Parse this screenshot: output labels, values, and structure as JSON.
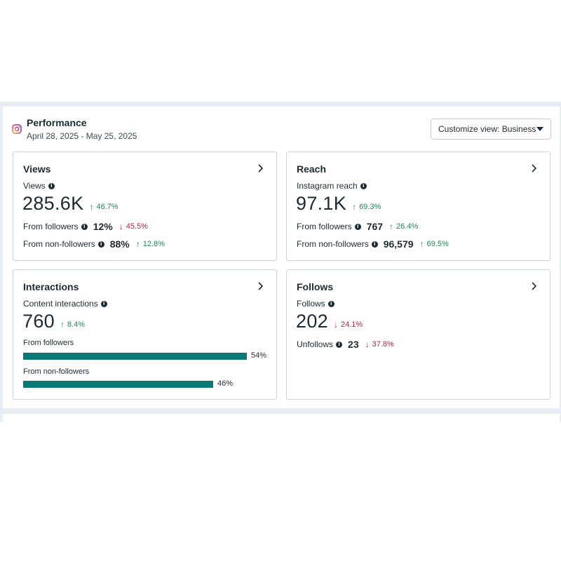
{
  "header": {
    "title": "Performance",
    "date_range": "April 28, 2025 - May 25, 2025",
    "customize_label": "Customize view: Business"
  },
  "colors": {
    "up": "#1f8a52",
    "down": "#b4263a",
    "bar": "#0b7878"
  },
  "views": {
    "title": "Views",
    "metric_label": "Views",
    "value": "285.6K",
    "delta": "46.7%",
    "followers_label": "From followers",
    "followers_value": "12%",
    "followers_delta": "45.5%",
    "nonfollowers_label": "From non-followers",
    "nonfollowers_value": "88%",
    "nonfollowers_delta": "12.8%"
  },
  "reach": {
    "title": "Reach",
    "metric_label": "Instagram reach",
    "value": "97.1K",
    "delta": "69.3%",
    "followers_label": "From followers",
    "followers_value": "767",
    "followers_delta": "26.4%",
    "nonfollowers_label": "From non-followers",
    "nonfollowers_value": "96,579",
    "nonfollowers_delta": "69.5%"
  },
  "interactions": {
    "title": "Interactions",
    "metric_label": "Content interactions",
    "value": "760",
    "delta": "8.4%",
    "bars": [
      {
        "label": "From followers",
        "percent": 54,
        "pct_text": "54%"
      },
      {
        "label": "From non-followers",
        "percent": 46,
        "pct_text": "46%"
      }
    ]
  },
  "follows": {
    "title": "Follows",
    "metric_label": "Follows",
    "value": "202",
    "delta": "24.1%",
    "unfollows_label": "Unfollows",
    "unfollows_value": "23",
    "unfollows_delta": "37.8%"
  }
}
